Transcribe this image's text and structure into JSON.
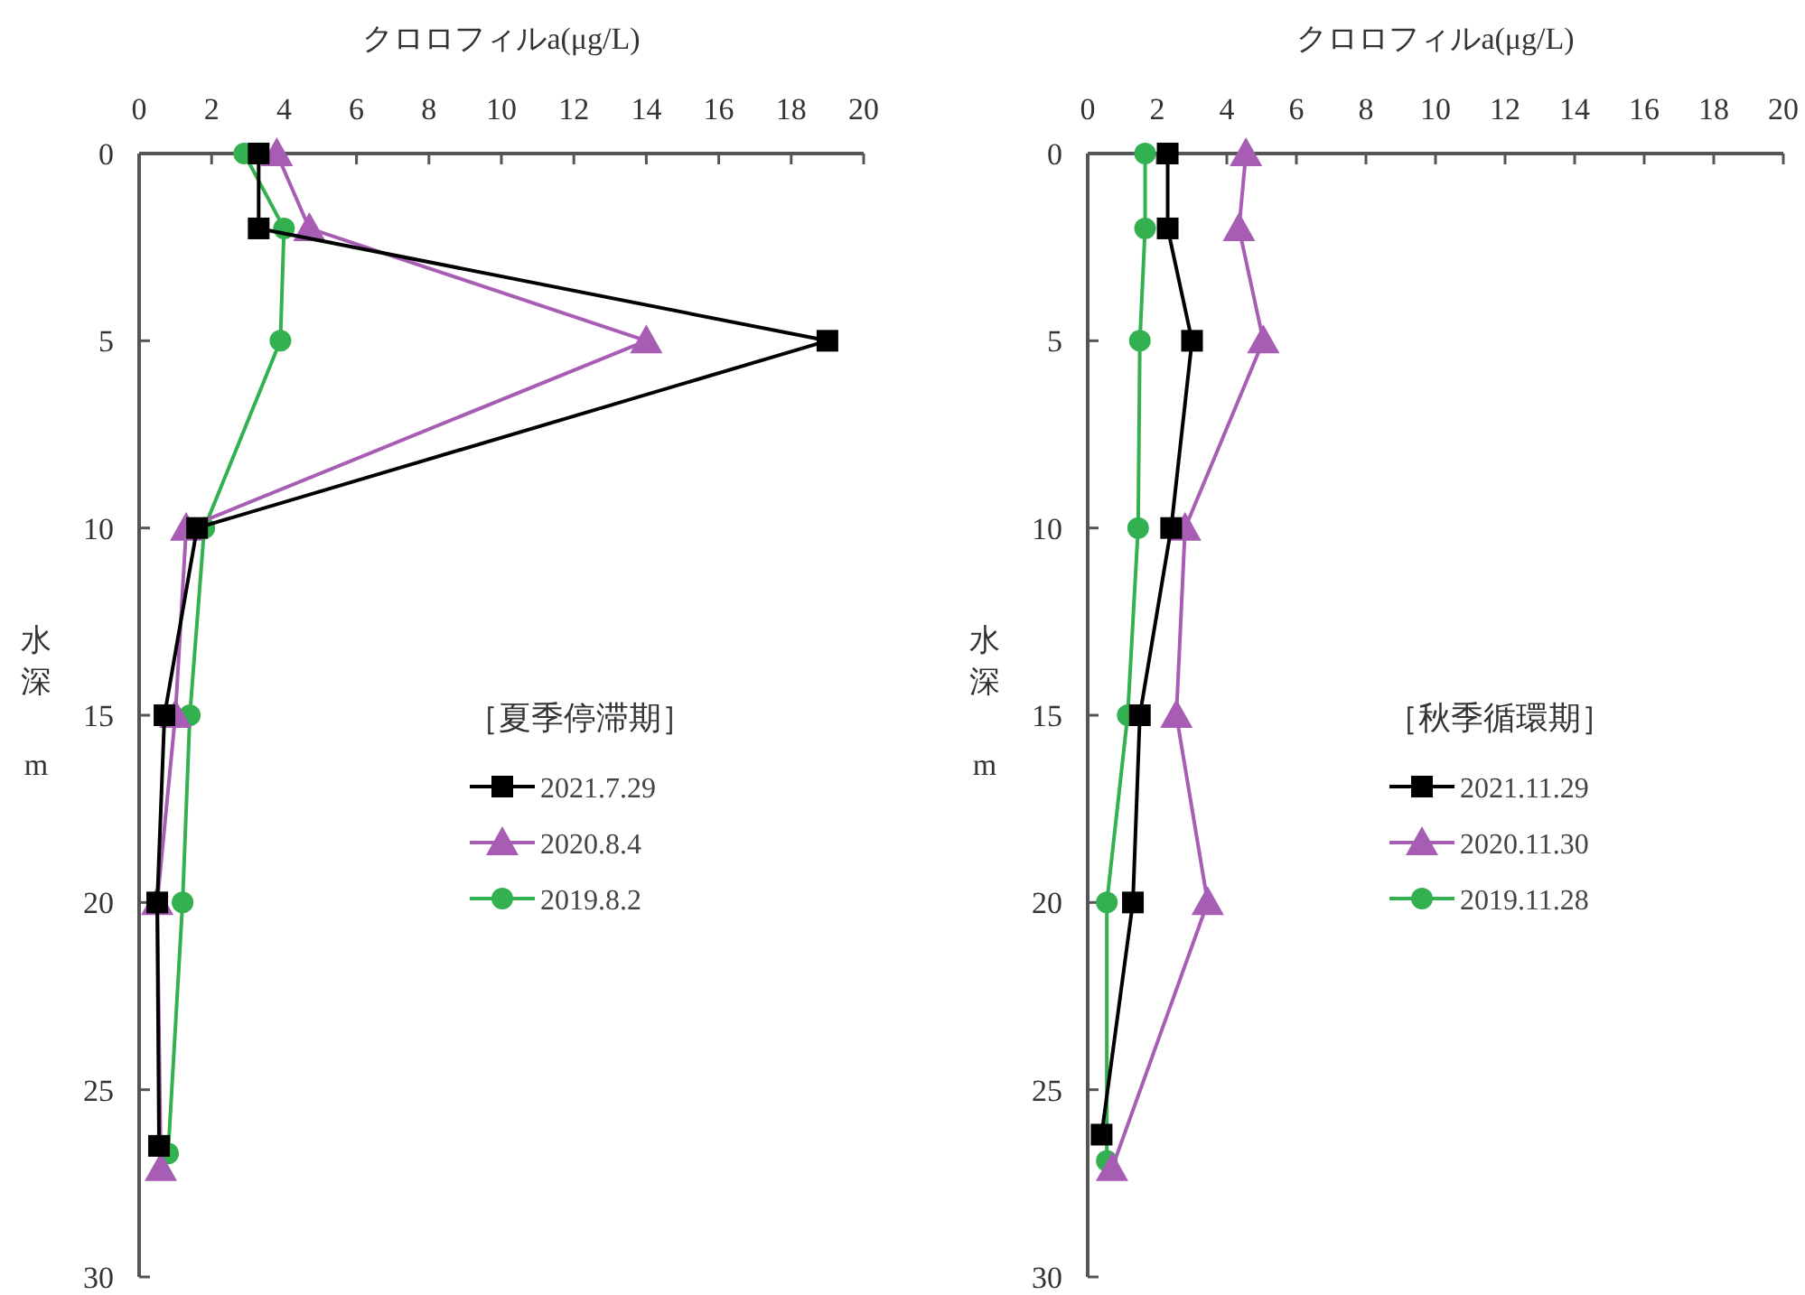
{
  "chart_data": [
    {
      "type": "line",
      "xlabel": "クロロフィルa(μg/L)",
      "ylabel": "水深 m",
      "legend_title": "［夏季停滞期］",
      "legend": "right",
      "xlim": [
        0,
        20
      ],
      "xticks": [
        0,
        2,
        4,
        6,
        8,
        10,
        12,
        14,
        16,
        18,
        20
      ],
      "ylim": [
        30,
        0
      ],
      "yticks": [
        0,
        5,
        10,
        15,
        20,
        25,
        30
      ],
      "grid": false,
      "series": [
        {
          "name": "2021.7.29",
          "color": "#000000",
          "marker": "square",
          "x": [
            3.3,
            3.3,
            19.0,
            1.6,
            0.7,
            0.5,
            0.55
          ],
          "values": [
            0,
            2,
            5,
            10,
            15,
            20,
            26.5
          ]
        },
        {
          "name": "2020.8.4",
          "color": "#a75db3",
          "marker": "triangle",
          "x": [
            3.8,
            4.7,
            14.0,
            1.3,
            1.0,
            0.5,
            0.6
          ],
          "values": [
            0,
            2,
            5,
            10,
            15,
            20,
            27.1
          ]
        },
        {
          "name": "2019.8.2",
          "color": "#33b050",
          "marker": "circle",
          "x": [
            2.9,
            4.0,
            3.9,
            1.8,
            1.4,
            1.2,
            0.8
          ],
          "values": [
            0,
            2,
            5,
            10,
            15,
            20,
            26.7
          ]
        }
      ]
    },
    {
      "type": "line",
      "xlabel": "クロロフィルa(μg/L)",
      "ylabel": "水深 m",
      "legend_title": "［秋季循環期］",
      "legend": "right",
      "xlim": [
        0,
        20
      ],
      "xticks": [
        0,
        2,
        4,
        6,
        8,
        10,
        12,
        14,
        16,
        18,
        20
      ],
      "ylim": [
        30,
        0
      ],
      "yticks": [
        0,
        5,
        10,
        15,
        20,
        25,
        30
      ],
      "grid": false,
      "series": [
        {
          "name": "2021.11.29",
          "color": "#000000",
          "marker": "square",
          "x": [
            2.3,
            2.3,
            3.0,
            2.4,
            1.5,
            1.3,
            0.4
          ],
          "values": [
            0,
            2,
            5,
            10,
            15,
            20,
            26.2
          ]
        },
        {
          "name": "2020.11.30",
          "color": "#a75db3",
          "marker": "triangle",
          "x": [
            4.55,
            4.35,
            5.05,
            2.8,
            2.55,
            3.45,
            0.7
          ],
          "values": [
            0,
            2,
            5,
            10,
            15,
            20,
            27.1
          ]
        },
        {
          "name": "2019.11.28",
          "color": "#33b050",
          "marker": "circle",
          "x": [
            1.65,
            1.65,
            1.5,
            1.45,
            1.15,
            0.55,
            0.55
          ],
          "values": [
            0,
            2,
            5,
            10,
            15,
            20,
            26.9
          ]
        }
      ]
    }
  ]
}
